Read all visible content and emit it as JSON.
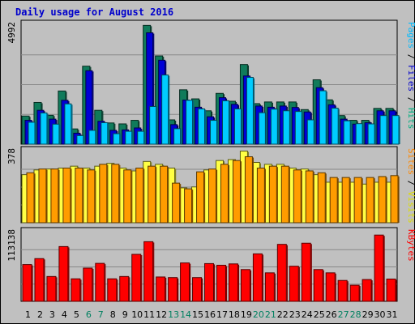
{
  "chart_data": {
    "type": "bar",
    "title": "Daily usage for August 2016",
    "days": [
      "1",
      "2",
      "3",
      "4",
      "5",
      "6",
      "7",
      "8",
      "9",
      "10",
      "11",
      "12",
      "13",
      "14",
      "15",
      "16",
      "17",
      "18",
      "19",
      "20",
      "21",
      "22",
      "23",
      "24",
      "25",
      "26",
      "27",
      "28",
      "29",
      "30",
      "31"
    ],
    "weekend_days": [
      "6",
      "7",
      "13",
      "14",
      "20",
      "21",
      "27",
      "28"
    ],
    "panels": [
      {
        "id": "hits",
        "max_label": "4992",
        "ymax": 4992,
        "legend": [
          {
            "text": "Pages",
            "color": "#00bbff"
          },
          {
            "text": " / ",
            "color": "#000000"
          },
          {
            "text": "Files",
            "color": "#0000cc"
          },
          {
            "text": " / ",
            "color": "#000000"
          },
          {
            "text": "Hits",
            "color": "#00b080"
          }
        ],
        "series": [
          {
            "name": "Hits",
            "color": "#107b5b",
            "values": [
              1180,
              1750,
              1210,
              2230,
              640,
              3270,
              1420,
              890,
              850,
              1000,
              4980,
              3700,
              1020,
              2280,
              1900,
              1400,
              2130,
              1800,
              3340,
              1700,
              1770,
              1770,
              1770,
              1450,
              2700,
              1860,
              1200,
              1000,
              1000,
              1500,
              1500
            ]
          },
          {
            "name": "Files",
            "color": "#0000d6",
            "values": [
              1000,
              1420,
              1050,
              1840,
              460,
              3080,
              960,
              580,
              600,
              680,
              4670,
              3520,
              820,
              1850,
              1550,
              1150,
              1950,
              1670,
              2860,
              1600,
              1550,
              1600,
              1540,
              1350,
              2370,
              1650,
              1050,
              840,
              900,
              1400,
              1400
            ]
          },
          {
            "name": "Pages",
            "color": "#00ccff",
            "values": [
              920,
              1310,
              840,
              1690,
              360,
              580,
              900,
              440,
              540,
              540,
              1580,
              2900,
              650,
              1840,
              1480,
              1000,
              1820,
              1480,
              2800,
              1320,
              1470,
              1400,
              1370,
              1020,
              2240,
              1510,
              980,
              860,
              850,
              1200,
              1200
            ]
          }
        ]
      },
      {
        "id": "visits",
        "max_label": "378",
        "ymax": 378,
        "legend": [
          {
            "text": "Sites",
            "color": "#ff8800"
          },
          {
            "text": " / ",
            "color": "#000000"
          },
          {
            "text": "Visits",
            "color": "#dddd00"
          }
        ],
        "series": [
          {
            "name": "Visits",
            "color": "#ffff44",
            "values": [
              255,
              280,
              285,
              290,
              300,
              290,
              300,
              315,
              290,
              275,
              325,
              310,
              290,
              185,
              190,
              280,
              330,
              335,
              380,
              320,
              310,
              310,
              290,
              285,
              255,
              215,
              215,
              215,
              205,
              215,
              215
            ]
          },
          {
            "name": "Sites",
            "color": "#ff9c00",
            "values": [
              265,
              285,
              285,
              290,
              290,
              280,
              310,
              310,
              280,
              290,
              300,
              300,
              210,
              180,
              270,
              285,
              310,
              330,
              350,
              290,
              300,
              300,
              280,
              275,
              265,
              240,
              240,
              240,
              240,
              245,
              250
            ]
          }
        ]
      },
      {
        "id": "kbytes",
        "max_label": "113138",
        "ymax": 113138,
        "legend": [
          {
            "text": "KBytes",
            "color": "#ff0000"
          }
        ],
        "series": [
          {
            "name": "KBytes",
            "color": "#ff0000",
            "values": [
              60450,
              70200,
              40800,
              90000,
              37000,
              54600,
              62400,
              37000,
              40800,
              77200,
              98000,
              40000,
              39000,
              63100,
              39000,
              62000,
              59300,
              61500,
              52200,
              78000,
              46800,
              93600,
              57700,
              95500,
              52200,
              46800,
              34300,
              26500,
              35800,
              108900,
              36600
            ]
          }
        ]
      }
    ]
  }
}
